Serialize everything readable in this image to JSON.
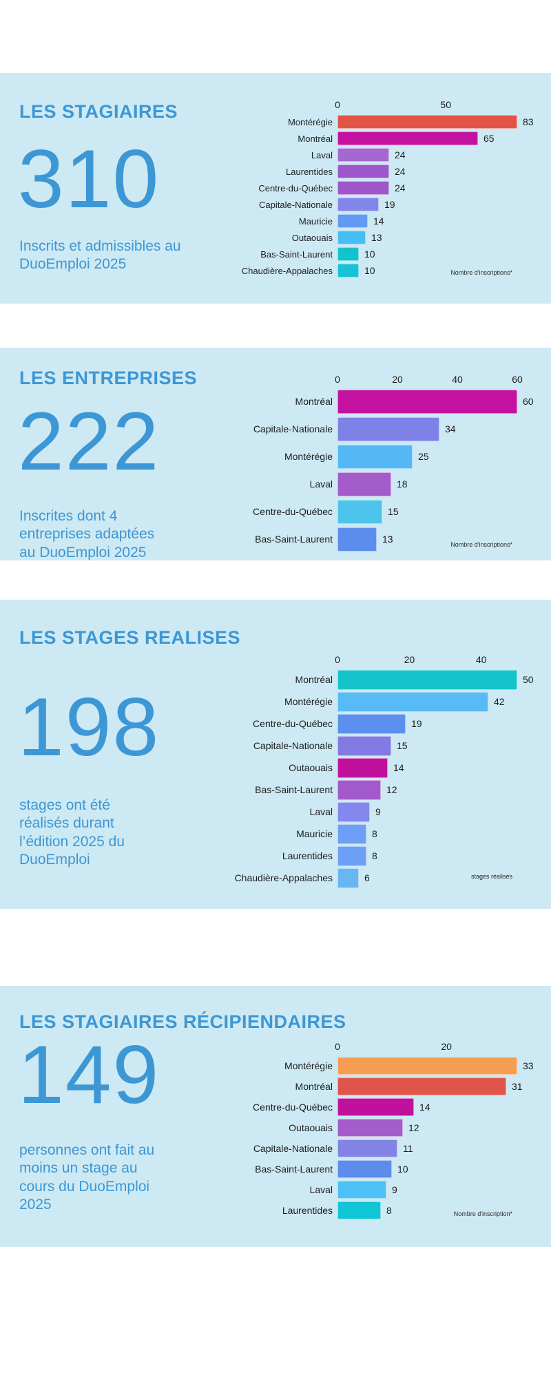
{
  "theme": {
    "accent_blue": "#3d97d5",
    "panel_background": "#cde9f3",
    "page_background": "#ffffff",
    "chart_text": "#1d1d1d"
  },
  "sections": [
    {
      "title": "LES STAGIAIRES",
      "big_number": "310",
      "description": "Inscrits et admissibles au DuoEmploi 2025"
    },
    {
      "title": "LES ENTREPRISES",
      "big_number": "222",
      "description": "Inscrites dont 4 entreprises adaptées au DuoEmploi 2025"
    },
    {
      "title": "LES STAGES REALISES",
      "big_number": "198",
      "description": "stages ont été réalisés durant l’édition 2025 du DuoEmploi"
    },
    {
      "title": "LES STAGIAIRES RÉCIPIENDAIRES",
      "big_number": "149",
      "description": "personnes ont fait au moins un stage au cours du DuoEmploi 2025"
    }
  ],
  "chart_data": [
    {
      "type": "bar",
      "orientation": "horizontal",
      "section": "LES STAGIAIRES",
      "categories": [
        "Montérégie",
        "Montréal",
        "Laval",
        "Laurentides",
        "Centre-du-Québec",
        "Capitale-Nationale",
        "Mauricie",
        "Outaouais",
        "Bas-Saint-Laurent",
        "Chaudière-Appalaches"
      ],
      "values": [
        83,
        65,
        24,
        24,
        24,
        19,
        14,
        13,
        10,
        10
      ],
      "bar_colors": [
        "#e25447",
        "#c4119f",
        "#a568d0",
        "#9e57ca",
        "#9e57ca",
        "#8286e8",
        "#6399f2",
        "#46bef5",
        "#12c2cc",
        "#17c1d8"
      ],
      "ticks": [
        0,
        50
      ],
      "xlim": [
        0,
        83
      ],
      "grid": false,
      "value_labels": true,
      "footnote": "Nombre d'inscriptions*"
    },
    {
      "type": "bar",
      "orientation": "horizontal",
      "section": "LES ENTREPRISES",
      "categories": [
        "Montréal",
        "Capitale-Nationale",
        "Montérégie",
        "Laval",
        "Centre-du-Québec",
        "Bas-Saint-Laurent"
      ],
      "values": [
        60,
        34,
        25,
        18,
        15,
        13
      ],
      "bar_colors": [
        "#c4119f",
        "#7e82e6",
        "#54b8f4",
        "#a55ccb",
        "#4cc4ec",
        "#5c8dec"
      ],
      "ticks": [
        0,
        20,
        40,
        60
      ],
      "xlim": [
        0,
        60
      ],
      "grid": false,
      "value_labels": true,
      "footnote": "Nombre d'inscriptions*"
    },
    {
      "type": "bar",
      "orientation": "horizontal",
      "section": "LES STAGES REALISES",
      "categories": [
        "Montréal",
        "Montérégie",
        "Centre-du-Québec",
        "Capitale-Nationale",
        "Outaouais",
        "Bas-Saint-Laurent",
        "Laval",
        "Mauricie",
        "Laurentides",
        "Chaudière-Appalaches"
      ],
      "values": [
        50,
        42,
        19,
        15,
        14,
        12,
        9,
        8,
        8,
        6
      ],
      "bar_colors": [
        "#14c3ca",
        "#58bbf6",
        "#5b90ee",
        "#8379e2",
        "#c2109e",
        "#a259ca",
        "#8487ec",
        "#6ba0f6",
        "#6ba0f6",
        "#69b6f3"
      ],
      "ticks": [
        0,
        20,
        40
      ],
      "xlim": [
        0,
        50
      ],
      "grid": false,
      "value_labels": true,
      "footnote": "stages réalisés"
    },
    {
      "type": "bar",
      "orientation": "horizontal",
      "section": "LES STAGIAIRES RÉCIPIENDAIRES",
      "categories": [
        "Montérégie",
        "Montréal",
        "Centre-du-Québec",
        "Outaouais",
        "Capitale-Nationale",
        "Bas-Saint-Laurent",
        "Laval",
        "Laurentides"
      ],
      "values": [
        33,
        31,
        14,
        12,
        11,
        10,
        9,
        8
      ],
      "bar_colors": [
        "#f59d51",
        "#e0554a",
        "#c2109e",
        "#a55ccb",
        "#8383e6",
        "#5c8dec",
        "#4cc0f7",
        "#10c5d5"
      ],
      "ticks": [
        0,
        20
      ],
      "xlim": [
        0,
        33
      ],
      "grid": false,
      "value_labels": true,
      "footnote": "Nombre d'inscription*"
    }
  ]
}
